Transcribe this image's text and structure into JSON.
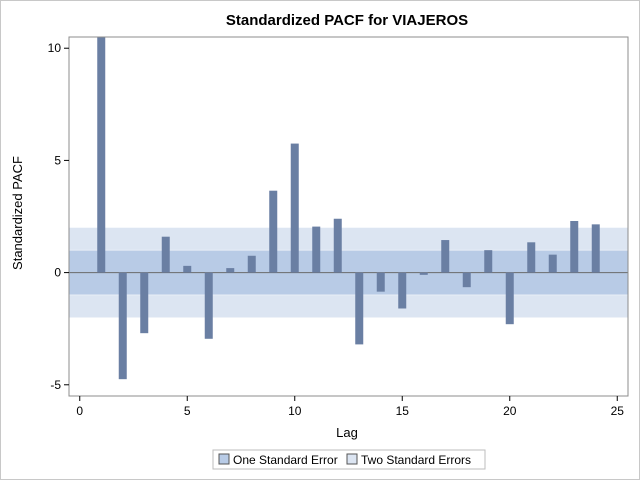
{
  "chart_data": {
    "type": "bar",
    "title": "Standardized PACF for VIAJEROS",
    "xlabel": "Lag",
    "ylabel": "Standardized PACF",
    "xlim": [
      -0.5,
      25.5
    ],
    "ylim": [
      -5.5,
      10.5
    ],
    "xticks": [
      0,
      5,
      10,
      15,
      20,
      25
    ],
    "yticks": [
      -5,
      0,
      5,
      10
    ],
    "x": [
      1,
      2,
      3,
      4,
      5,
      6,
      7,
      8,
      9,
      10,
      11,
      12,
      13,
      14,
      15,
      16,
      17,
      18,
      19,
      20,
      21,
      22,
      23,
      24
    ],
    "values": [
      10.5,
      -4.75,
      -2.7,
      1.6,
      0.3,
      -2.95,
      0.2,
      0.75,
      3.65,
      5.75,
      2.05,
      2.4,
      -3.2,
      -0.85,
      -1.6,
      -0.1,
      1.45,
      -0.65,
      1.0,
      -2.3,
      1.35,
      0.8,
      2.3,
      2.15
    ],
    "bands": [
      {
        "name": "One Standard Error",
        "lower": -1,
        "upper": 1
      },
      {
        "name": "Two Standard Errors",
        "lower": -2,
        "upper": 2
      }
    ],
    "colors": {
      "bar": "#6a7fa3",
      "one_se": "#b8cbe6",
      "two_se": "#dce5f2",
      "zero_line": "#6b6b6b"
    },
    "legend_position": "bottom"
  }
}
